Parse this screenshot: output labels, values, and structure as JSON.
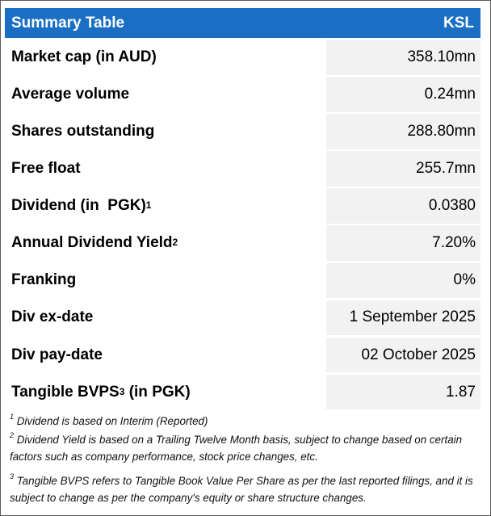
{
  "header": {
    "title": "Summary Table",
    "ticker": "KSL"
  },
  "rows": [
    {
      "label": "Market cap (in AUD)",
      "sup": "",
      "label_suffix": "",
      "value": "358.10mn"
    },
    {
      "label": "Average volume",
      "sup": "",
      "label_suffix": "",
      "value": "0.24mn"
    },
    {
      "label": "Shares outstanding",
      "sup": "",
      "label_suffix": "",
      "value": "288.80mn"
    },
    {
      "label": "Free float",
      "sup": "",
      "label_suffix": "",
      "value": "255.7mn"
    },
    {
      "label": "Dividend (in  PGK)",
      "sup": "1",
      "label_suffix": "",
      "value": "0.0380"
    },
    {
      "label": "Annual Dividend Yield",
      "sup": "2",
      "label_suffix": "",
      "value": "7.20%"
    },
    {
      "label": "Franking",
      "sup": "",
      "label_suffix": "",
      "value": "0%"
    },
    {
      "label": "Div ex-date",
      "sup": "",
      "label_suffix": "",
      "value": "1 September 2025"
    },
    {
      "label": "Div pay-date",
      "sup": "",
      "label_suffix": "",
      "value": "02 October 2025"
    },
    {
      "label": "Tangible BVPS",
      "sup": "3",
      "label_suffix": " (in PGK)",
      "value": "1.87"
    }
  ],
  "footnotes": [
    {
      "num": "1",
      "text": " Dividend is based on Interim (Reported)"
    },
    {
      "num": "2",
      "text": " Dividend Yield is based on a Trailing Twelve Month basis, subject to change based on certain factors such as company performance, stock price changes, etc."
    },
    {
      "num": "3",
      "text": " Tangible BVPS refers to Tangible Book Value Per Share as per the last reported filings, and it is subject to change as per the company's equity or share structure changes."
    }
  ],
  "colors": {
    "header_bg": "#1a6fc4",
    "value_bg": "#f2f2f2",
    "border": "#5a5a5a"
  }
}
